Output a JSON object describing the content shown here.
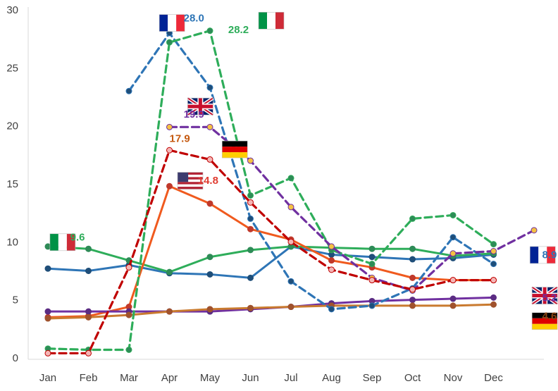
{
  "chart_data": {
    "type": "line",
    "categories": [
      "Jan",
      "Feb",
      "Mar",
      "Apr",
      "May",
      "Jun",
      "Jul",
      "Aug",
      "Sep",
      "Oct",
      "Nov",
      "Dec"
    ],
    "ylim": [
      0,
      30
    ],
    "yticks": [
      0,
      5,
      10,
      15,
      20,
      25,
      30
    ],
    "grid": false,
    "series": [
      {
        "key": "fr_solid",
        "color": "#2E75B6",
        "dashed": false,
        "marker": "#1F4E79",
        "values": [
          7.7,
          7.5,
          8.0,
          7.3,
          7.2,
          6.9,
          9.6,
          8.9,
          8.7,
          8.5,
          8.6,
          8.9
        ]
      },
      {
        "key": "it_solid",
        "color": "#2EAD5A",
        "dashed": false,
        "marker": "#2E8B57",
        "values": [
          9.6,
          9.4,
          8.4,
          7.4,
          8.7,
          9.3,
          9.6,
          9.5,
          9.4,
          9.4,
          8.8,
          9.0
        ]
      },
      {
        "key": "us_solid",
        "color": "#F05A1E",
        "dashed": false,
        "marker": "#C0392B",
        "values": [
          3.5,
          3.6,
          4.4,
          14.8,
          13.3,
          11.1,
          10.2,
          8.4,
          7.8,
          6.9,
          6.7,
          6.7
        ]
      },
      {
        "key": "uk_solid",
        "color": "#7030A0",
        "dashed": false,
        "marker": "#5B2C83",
        "values": [
          4.0,
          4.0,
          4.0,
          4.0,
          4.0,
          4.2,
          4.4,
          4.7,
          4.9,
          5.0,
          5.1,
          5.2
        ]
      },
      {
        "key": "de_solid",
        "color": "#C97A2F",
        "dashed": false,
        "marker": "#A0522D",
        "values": [
          3.4,
          3.5,
          3.7,
          4.0,
          4.2,
          4.3,
          4.4,
          4.5,
          4.5,
          4.5,
          4.5,
          4.6
        ]
      },
      {
        "key": "fr_dashed",
        "color": "#2E75B6",
        "dashed": true,
        "marker": "#1F4E79",
        "x": [
          2,
          3,
          4,
          5,
          6,
          7,
          8,
          9,
          10,
          11
        ],
        "values": [
          23.0,
          28.0,
          23.3,
          12.0,
          6.6,
          4.2,
          4.5,
          6.0,
          10.4,
          8.1
        ]
      },
      {
        "key": "it_dashed",
        "color": "#2EAD5A",
        "dashed": true,
        "marker": "#2E8B57",
        "x": [
          0,
          1,
          2,
          3,
          4,
          5,
          6,
          7,
          8,
          9,
          10,
          11
        ],
        "values": [
          0.8,
          0.7,
          0.7,
          27.2,
          28.2,
          14.0,
          15.5,
          9.3,
          8.1,
          12.0,
          12.3,
          9.8
        ]
      },
      {
        "key": "uk_dashed",
        "color": "#7030A0",
        "dashed": true,
        "marker": "#F5C242",
        "x": [
          3,
          4,
          5,
          6,
          7,
          8,
          9,
          10,
          11,
          12
        ],
        "values": [
          19.9,
          19.9,
          17.0,
          13.0,
          9.6,
          6.9,
          5.8,
          9.0,
          9.2,
          11.0
        ]
      },
      {
        "key": "us_dashed",
        "color": "#C00000",
        "dashed": true,
        "marker": "#F4B6B6",
        "x": [
          0,
          1,
          2,
          3,
          4,
          5,
          6,
          7,
          8,
          9,
          10,
          11
        ],
        "values": [
          0.4,
          0.4,
          7.8,
          17.9,
          17.1,
          13.4,
          10.0,
          7.6,
          6.7,
          5.9,
          6.7,
          6.7
        ]
      }
    ],
    "annotations": [
      {
        "text": "28.0",
        "color": "#2E75B6",
        "x": 3.35,
        "y": 29.0
      },
      {
        "text": "28.2",
        "color": "#2EAD5A",
        "x": 4.45,
        "y": 28.0
      },
      {
        "text": "19.9",
        "color": "#7030A0",
        "x": 3.35,
        "y": 20.7
      },
      {
        "text": "17.9",
        "color": "#C55A11",
        "x": 3.0,
        "y": 18.6
      },
      {
        "text": "14.8",
        "color": "#E03C31",
        "x": 3.7,
        "y": 15.0
      },
      {
        "text": "9.6",
        "color": "#2EAD5A",
        "x": 0.55,
        "y": 10.1
      },
      {
        "text": "8.9",
        "color": "#2E75B6",
        "x": 12.2,
        "y": 8.6
      },
      {
        "text": "5.2",
        "color": "#7030A0",
        "x": 12.2,
        "y": 4.9
      },
      {
        "text": "4.6",
        "color": "#8B4513",
        "x": 12.2,
        "y": 3.3
      }
    ],
    "flags": [
      {
        "country": "france",
        "x": 2.75,
        "y": 29.6
      },
      {
        "country": "italy",
        "x": 5.2,
        "y": 29.8
      },
      {
        "country": "uk",
        "x": 3.45,
        "y": 22.4
      },
      {
        "country": "germany",
        "x": 4.3,
        "y": 18.7
      },
      {
        "country": "usa",
        "x": 3.2,
        "y": 16.0
      },
      {
        "country": "italy",
        "x": 0.05,
        "y": 10.7
      },
      {
        "country": "france",
        "x": 11.9,
        "y": 9.6
      },
      {
        "country": "uk",
        "x": 11.95,
        "y": 6.1
      },
      {
        "country": "germany",
        "x": 11.95,
        "y": 3.9
      }
    ]
  }
}
